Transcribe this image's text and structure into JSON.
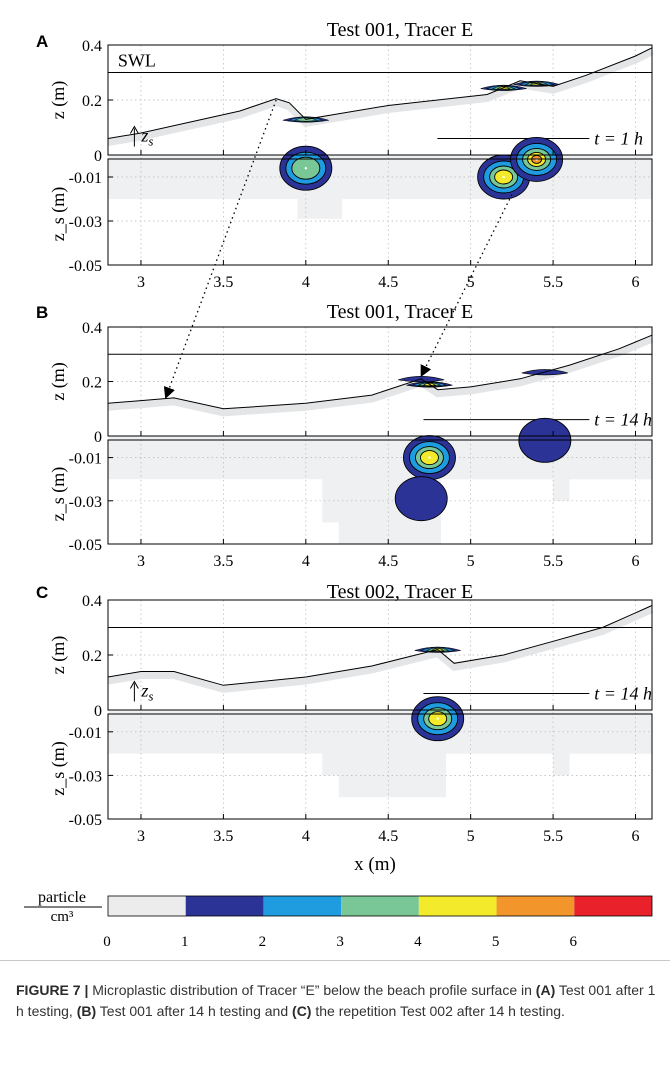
{
  "chart_data": [
    {
      "panel": "A",
      "title": "Test 001, Tracer E",
      "type": "line",
      "ylabel": "z (m)",
      "ylim": [
        0,
        0.4
      ],
      "yticks": [
        "0.4",
        "0.2",
        "0"
      ],
      "swl_label": "SWL",
      "swl": 0.3,
      "zs_label": "z_s",
      "time_label": "t = 1 h",
      "profile": {
        "x": [
          2.8,
          3.0,
          3.3,
          3.6,
          3.82,
          3.9,
          4.0,
          4.2,
          4.5,
          4.8,
          5.1,
          5.3,
          5.5,
          5.7,
          6.0,
          6.1
        ],
        "z": [
          0.06,
          0.08,
          0.12,
          0.16,
          0.205,
          0.19,
          0.13,
          0.15,
          0.18,
          0.2,
          0.22,
          0.27,
          0.25,
          0.29,
          0.36,
          0.39
        ]
      },
      "sub": {
        "ylabel": "z_s (m)",
        "ylim": [
          -0.05,
          0
        ],
        "yticks": [
          "-0.01",
          "-0.03",
          "-0.05"
        ],
        "concentration_peaks": [
          {
            "x": 4.0,
            "zs": -0.006,
            "max_level": 3
          },
          {
            "x": 5.2,
            "zs": -0.01,
            "max_level": 4
          },
          {
            "x": 5.4,
            "zs": -0.002,
            "max_level": 5
          }
        ]
      }
    },
    {
      "panel": "B",
      "title": "Test 001, Tracer E",
      "type": "line",
      "ylabel": "z (m)",
      "ylim": [
        0,
        0.4
      ],
      "yticks": [
        "0.4",
        "0.2",
        "0"
      ],
      "swl": 0.3,
      "time_label": "t = 14 h",
      "profile": {
        "x": [
          2.8,
          3.0,
          3.2,
          3.5,
          4.0,
          4.4,
          4.7,
          4.8,
          5.0,
          5.3,
          5.6,
          5.9,
          6.1
        ],
        "z": [
          0.12,
          0.13,
          0.14,
          0.1,
          0.12,
          0.15,
          0.21,
          0.17,
          0.18,
          0.21,
          0.26,
          0.32,
          0.37
        ]
      },
      "sub": {
        "ylabel": "z_s (m)",
        "ylim": [
          -0.05,
          0
        ],
        "yticks": [
          "-0.01",
          "-0.03",
          "-0.05"
        ],
        "concentration_peaks": [
          {
            "x": 4.75,
            "zs": -0.01,
            "max_level": 4
          },
          {
            "x": 4.7,
            "zs": -0.029,
            "max_level": 1
          },
          {
            "x": 5.45,
            "zs": -0.002,
            "max_level": 1
          }
        ]
      }
    },
    {
      "panel": "C",
      "title": "Test 002, Tracer E",
      "type": "line",
      "ylabel": "z (m)",
      "ylim": [
        0,
        0.4
      ],
      "yticks": [
        "0.4",
        "0.2",
        "0"
      ],
      "swl": 0.3,
      "zs_label": "z_s",
      "time_label": "t = 14 h",
      "profile": {
        "x": [
          2.8,
          3.0,
          3.2,
          3.5,
          4.0,
          4.4,
          4.8,
          4.9,
          5.2,
          5.5,
          5.8,
          6.1
        ],
        "z": [
          0.12,
          0.14,
          0.14,
          0.09,
          0.12,
          0.16,
          0.22,
          0.17,
          0.2,
          0.25,
          0.3,
          0.38
        ]
      },
      "sub": {
        "ylabel": "z_s (m)",
        "ylim": [
          -0.05,
          0
        ],
        "yticks": [
          "-0.01",
          "-0.03",
          "-0.05"
        ],
        "concentration_peaks": [
          {
            "x": 4.8,
            "zs": -0.004,
            "max_level": 4
          }
        ]
      }
    }
  ],
  "x_axis": {
    "label": "x (m)",
    "xlim": [
      2.8,
      6.1
    ],
    "ticks": [
      3,
      3.5,
      4,
      4.5,
      5,
      5.5,
      6
    ],
    "tick_labels": [
      "3",
      "3.5",
      "4",
      "4.5",
      "5",
      "5.5",
      "6"
    ]
  },
  "arrows": [
    {
      "from": {
        "panel": "A",
        "x": 3.82,
        "z": 0.2
      },
      "to": {
        "panel": "B",
        "x": 3.15,
        "z": 0.14
      }
    },
    {
      "from": {
        "panel": "A",
        "x": 5.25,
        "zs": -0.018
      },
      "to": {
        "panel": "B",
        "x": 4.7,
        "z": 0.22
      }
    }
  ],
  "colorbar": {
    "label_top": "particle",
    "label_bottom": "cm³",
    "ticks": [
      "0",
      "1",
      "2",
      "3",
      "4",
      "5",
      "6"
    ],
    "colors": [
      "#ececec",
      "#2b3496",
      "#1f9be0",
      "#79c796",
      "#f2ea2a",
      "#f2962b",
      "#e8212a"
    ]
  },
  "caption": {
    "figure": "FIGURE 7 |",
    "text": " Microplastic distribution of Tracer “E” below the beach profile surface in ",
    "a_label": "(A)",
    "a_text": " Test 001 after 1 h testing, ",
    "b_label": "(B)",
    "b_text": " Test 001 after 14 h testing and ",
    "c_label": "(C)",
    "c_text": " the repetition Test 002 after 14 h testing."
  }
}
